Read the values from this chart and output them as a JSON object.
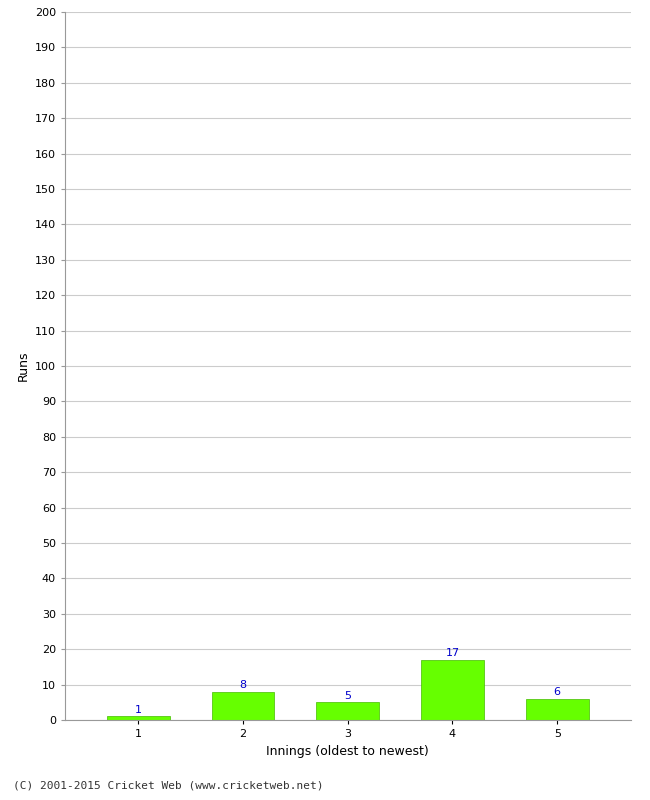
{
  "categories": [
    1,
    2,
    3,
    4,
    5
  ],
  "values": [
    1,
    8,
    5,
    17,
    6
  ],
  "bar_color": "#66ff00",
  "bar_edge_color": "#44bb00",
  "label_color": "#0000cc",
  "xlabel": "Innings (oldest to newest)",
  "ylabel": "Runs",
  "ylim": [
    0,
    200
  ],
  "yticks": [
    0,
    10,
    20,
    30,
    40,
    50,
    60,
    70,
    80,
    90,
    100,
    110,
    120,
    130,
    140,
    150,
    160,
    170,
    180,
    190,
    200
  ],
  "background_color": "#ffffff",
  "grid_color": "#cccccc",
  "footer": "(C) 2001-2015 Cricket Web (www.cricketweb.net)",
  "label_fontsize": 8,
  "axis_fontsize": 8,
  "footer_fontsize": 8,
  "ylabel_fontsize": 8
}
